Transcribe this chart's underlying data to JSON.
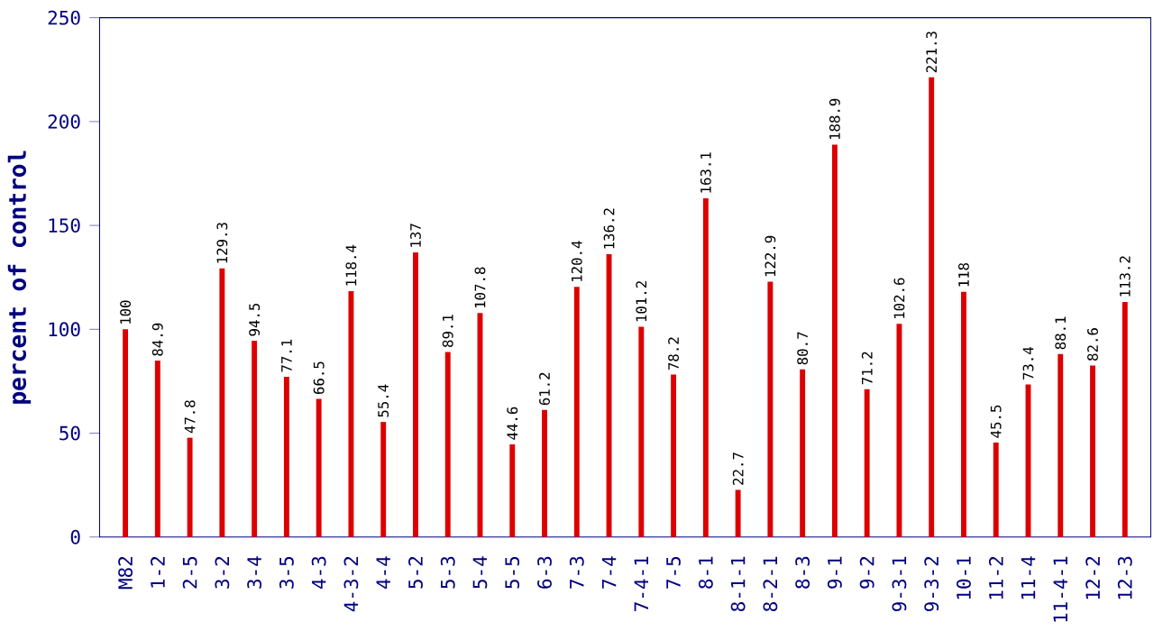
{
  "chart_data": {
    "type": "bar",
    "ylabel": "percent of control",
    "categories": [
      "M82",
      "1-2",
      "2-5",
      "3-2",
      "3-4",
      "3-5",
      "4-3",
      "4-3-2",
      "4-4",
      "5-2",
      "5-3",
      "5-4",
      "5-5",
      "6-3",
      "7-3",
      "7-4",
      "7-4-1",
      "7-5",
      "8-1",
      "8-1-1",
      "8-2-1",
      "8-3",
      "9-1",
      "9-2",
      "9-3-1",
      "9-3-2",
      "10-1",
      "11-2",
      "11-4",
      "11-4-1",
      "12-2",
      "12-3"
    ],
    "values": [
      100,
      84.9,
      47.8,
      129.3,
      94.5,
      77.1,
      66.5,
      118.4,
      55.4,
      137,
      89.1,
      107.8,
      44.6,
      61.2,
      120.4,
      136.2,
      101.2,
      78.2,
      163.1,
      22.7,
      122.9,
      80.7,
      188.9,
      71.2,
      102.6,
      221.3,
      118,
      45.5,
      73.4,
      88.1,
      82.6,
      113.2
    ],
    "color": "#dd0000",
    "ylim": [
      0,
      250
    ],
    "yticks": [
      0,
      50,
      100,
      150,
      200,
      250
    ],
    "data_labels": true
  }
}
